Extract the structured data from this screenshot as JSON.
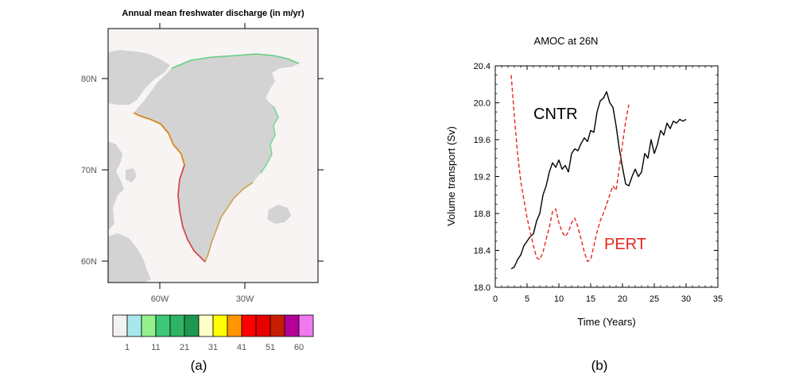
{
  "chart_data": [
    {
      "type": "map",
      "title": "Annual mean freshwater discharge (in m/yr)",
      "latitude_labels": [
        "80N",
        "70N",
        "60N"
      ],
      "longitude_labels": [
        "60W",
        "30W"
      ],
      "colorbar": {
        "tick_labels": [
          "1",
          "11",
          "21",
          "31",
          "41",
          "51",
          "60"
        ],
        "colors": [
          "#f2f2f2",
          "#a8e8ec",
          "#96f08c",
          "#3cc878",
          "#2eb464",
          "#1e9650",
          "#ffffc8",
          "#ffff00",
          "#ff9600",
          "#ff0000",
          "#e60000",
          "#c81e00",
          "#b40096",
          "#f078f0"
        ]
      },
      "land_color": "#d3d3d3",
      "ocean_color": "#f7f4f3",
      "panel_label": "(a)"
    },
    {
      "type": "line",
      "title": "AMOC at 26N",
      "xlabel": "Time (Years)",
      "ylabel": "Volume transport (Sv)",
      "xlim": [
        0,
        35
      ],
      "ylim": [
        18.0,
        20.4
      ],
      "xticks": [
        "0",
        "5",
        "10",
        "15",
        "20",
        "25",
        "30",
        "35"
      ],
      "yticks": [
        "18.0",
        "18.4",
        "18.8",
        "19.2",
        "19.6",
        "20.0",
        "20.4"
      ],
      "series": [
        {
          "name": "CNTR",
          "color": "#000000",
          "style": "solid",
          "x": [
            2.5,
            3,
            3.5,
            4,
            4.5,
            5,
            5.5,
            6,
            6.5,
            7,
            7.5,
            8,
            8.5,
            9,
            9.5,
            10,
            10.5,
            11,
            11.5,
            12,
            12.5,
            13,
            13.5,
            14,
            14.5,
            15,
            15.5,
            16,
            16.5,
            17,
            17.5,
            18,
            18.5,
            19,
            19.5,
            20,
            20.5,
            21,
            21.5,
            22,
            22.5,
            23,
            23.5,
            24,
            24.5,
            25,
            25.5,
            26,
            26.5,
            27,
            27.5,
            28,
            28.5,
            29,
            29.5,
            30
          ],
          "y": [
            18.2,
            18.22,
            18.3,
            18.35,
            18.45,
            18.5,
            18.55,
            18.58,
            18.72,
            18.8,
            19.0,
            19.1,
            19.25,
            19.35,
            19.3,
            19.38,
            19.28,
            19.32,
            19.25,
            19.45,
            19.5,
            19.48,
            19.56,
            19.62,
            19.58,
            19.7,
            19.68,
            19.9,
            20.02,
            20.05,
            20.12,
            20.0,
            19.95,
            19.75,
            19.5,
            19.3,
            19.12,
            19.1,
            19.2,
            19.28,
            19.2,
            19.25,
            19.45,
            19.4,
            19.6,
            19.45,
            19.55,
            19.7,
            19.65,
            19.78,
            19.72,
            19.8,
            19.78,
            19.82,
            19.8,
            19.82
          ]
        },
        {
          "name": "PERT",
          "color": "#e8251d",
          "style": "dashed",
          "x": [
            2.5,
            3,
            3.5,
            4,
            4.5,
            5,
            5.5,
            6,
            6.5,
            7,
            7.5,
            8,
            8.5,
            9,
            9.5,
            10,
            10.5,
            11,
            11.5,
            12,
            12.5,
            13,
            13.5,
            14,
            14.5,
            15,
            15.5,
            16,
            16.5,
            17,
            17.5,
            18,
            18.5,
            19,
            19.5,
            20,
            20.5,
            21
          ],
          "y": [
            20.3,
            19.85,
            19.45,
            19.15,
            18.95,
            18.75,
            18.6,
            18.45,
            18.32,
            18.3,
            18.38,
            18.52,
            18.65,
            18.82,
            18.85,
            18.7,
            18.6,
            18.55,
            18.6,
            18.7,
            18.75,
            18.65,
            18.52,
            18.38,
            18.28,
            18.3,
            18.45,
            18.6,
            18.72,
            18.8,
            18.9,
            19.0,
            19.1,
            19.05,
            19.3,
            19.55,
            19.8,
            19.98
          ]
        }
      ],
      "annotations": [
        "CNTR",
        "PERT"
      ],
      "panel_label": "(b)"
    }
  ]
}
